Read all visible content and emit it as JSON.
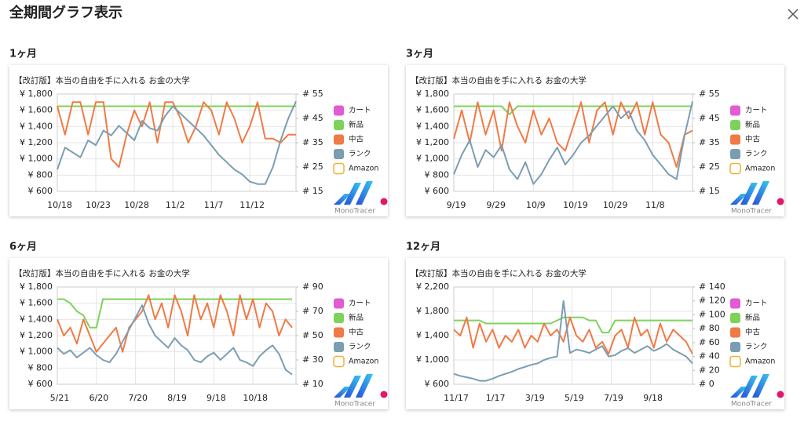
{
  "page_title": "全期間グラフ表示",
  "logo": "MonoTracer",
  "chart_data": [
    {
      "type": "line",
      "section": "1ヶ月",
      "title": "【改訂版】本当の自由を手に入れる お金の大学",
      "grid": true,
      "x": [
        0,
        1,
        2,
        3,
        4,
        5,
        6,
        7,
        8,
        9,
        10,
        11,
        12,
        13,
        14,
        15,
        16,
        17,
        18,
        19,
        20,
        21,
        22,
        23,
        24,
        25,
        26,
        27,
        28,
        29,
        30,
        31
      ],
      "xlim": [
        0,
        31
      ],
      "xticks": [
        {
          "value": 0,
          "label": "10/18"
        },
        {
          "value": 5,
          "label": "10/23"
        },
        {
          "value": 10,
          "label": "10/28"
        },
        {
          "value": 15,
          "label": "11/2"
        },
        {
          "value": 20,
          "label": "11/7"
        },
        {
          "value": 25,
          "label": "11/12"
        }
      ],
      "ylim": [
        600,
        1800
      ],
      "yticks": [
        {
          "value": 600,
          "label": "¥ 600"
        },
        {
          "value": 800,
          "label": "¥ 800"
        },
        {
          "value": 1000,
          "label": "¥ 1,000"
        },
        {
          "value": 1200,
          "label": "¥ 1,200"
        },
        {
          "value": 1400,
          "label": "¥ 1,400"
        },
        {
          "value": 1600,
          "label": "¥ 1,600"
        },
        {
          "value": 1800,
          "label": "¥ 1,800"
        }
      ],
      "y2lim": [
        15,
        55
      ],
      "y2ticks": [
        {
          "value": 15,
          "label": "# 15"
        },
        {
          "value": 25,
          "label": "# 25"
        },
        {
          "value": 35,
          "label": "# 35"
        },
        {
          "value": 45,
          "label": "# 45"
        },
        {
          "value": 55,
          "label": "# 55"
        }
      ],
      "series": [
        {
          "name": "カート",
          "color": "#e25bd3"
        },
        {
          "name": "新品",
          "color": "#7dd35a",
          "values": [
            1650,
            1650,
            1650,
            1650,
            1650,
            1650,
            1650,
            1650,
            1650,
            1650,
            1650,
            1650,
            1650,
            1650,
            1650,
            1650,
            1650,
            1650,
            1650,
            1650,
            1650,
            1650,
            1650,
            1650,
            1650,
            1650,
            1650,
            1650,
            1650,
            1650,
            1650,
            1650
          ]
        },
        {
          "name": "中古",
          "color": "#f07a45",
          "values": [
            1650,
            1300,
            1700,
            1700,
            1300,
            1700,
            1700,
            1000,
            900,
            1300,
            1600,
            1400,
            1700,
            1200,
            1700,
            1700,
            1500,
            1200,
            1400,
            1700,
            1600,
            1300,
            1700,
            1500,
            1200,
            1400,
            1700,
            1250,
            1250,
            1200,
            1300,
            1300
          ]
        },
        {
          "name": "ランク",
          "color": "#7b9db2",
          "axis": "y2",
          "values": [
            24,
            33,
            31,
            29,
            36,
            34,
            40,
            38,
            42,
            39,
            36,
            44,
            41,
            40,
            46,
            50,
            47,
            44,
            41,
            38,
            34,
            30,
            27,
            24,
            22,
            19,
            18,
            18,
            25,
            36,
            45,
            52
          ]
        },
        {
          "name": "Amazon",
          "color": "#f2b035",
          "outline": true
        }
      ]
    },
    {
      "type": "line",
      "section": "3ヶ月",
      "title": "【改訂版】本当の自由を手に入れる お金の大学",
      "grid": true,
      "x": [
        0,
        2,
        4,
        6,
        8,
        10,
        12,
        14,
        16,
        18,
        20,
        22,
        24,
        26,
        28,
        30,
        32,
        34,
        36,
        38,
        40,
        42,
        44,
        46,
        48,
        50,
        52,
        54,
        56,
        58,
        60
      ],
      "xlim": [
        0,
        60
      ],
      "xticks": [
        {
          "value": 0,
          "label": "9/19"
        },
        {
          "value": 10,
          "label": "9/29"
        },
        {
          "value": 20,
          "label": "10/9"
        },
        {
          "value": 30,
          "label": "10/19"
        },
        {
          "value": 40,
          "label": "10/29"
        },
        {
          "value": 50,
          "label": "11/8"
        }
      ],
      "ylim": [
        600,
        1800
      ],
      "yticks": [
        {
          "value": 600,
          "label": "¥ 600"
        },
        {
          "value": 800,
          "label": "¥ 800"
        },
        {
          "value": 1000,
          "label": "¥ 1,000"
        },
        {
          "value": 1200,
          "label": "¥ 1,200"
        },
        {
          "value": 1400,
          "label": "¥ 1,400"
        },
        {
          "value": 1600,
          "label": "¥ 1,600"
        },
        {
          "value": 1800,
          "label": "¥ 1,800"
        }
      ],
      "y2lim": [
        15,
        55
      ],
      "y2ticks": [
        {
          "value": 15,
          "label": "# 15"
        },
        {
          "value": 25,
          "label": "# 25"
        },
        {
          "value": 35,
          "label": "# 35"
        },
        {
          "value": 45,
          "label": "# 45"
        },
        {
          "value": 55,
          "label": "# 55"
        }
      ],
      "series": [
        {
          "name": "カート",
          "color": "#e25bd3"
        },
        {
          "name": "新品",
          "color": "#7dd35a",
          "values": [
            1650,
            1650,
            1650,
            1650,
            1650,
            1650,
            1650,
            1550,
            1650,
            1650,
            1650,
            1650,
            1650,
            1650,
            1650,
            1650,
            1650,
            1650,
            1650,
            1650,
            1650,
            1650,
            1650,
            1650,
            1650,
            1650,
            1650,
            1650,
            1650,
            1650,
            1650
          ]
        },
        {
          "name": "中古",
          "color": "#f07a45",
          "values": [
            1250,
            1600,
            1200,
            1700,
            1300,
            1600,
            1100,
            1700,
            1400,
            1200,
            1600,
            1300,
            1500,
            1200,
            1100,
            1400,
            1700,
            1200,
            1600,
            1700,
            1300,
            1700,
            1500,
            1700,
            1300,
            1700,
            1300,
            1200,
            900,
            1300,
            1350
          ]
        },
        {
          "name": "ランク",
          "color": "#7b9db2",
          "axis": "y2",
          "values": [
            22,
            30,
            36,
            25,
            32,
            29,
            34,
            24,
            20,
            27,
            18,
            22,
            28,
            33,
            26,
            30,
            35,
            38,
            42,
            46,
            50,
            45,
            48,
            40,
            36,
            30,
            26,
            22,
            20,
            38,
            52
          ]
        },
        {
          "name": "Amazon",
          "color": "#f2b035",
          "outline": true
        }
      ]
    },
    {
      "type": "line",
      "section": "6ヶ月",
      "title": "【改訂版】本当の自由を手に入れる お金の大学",
      "grid": true,
      "x": [
        0,
        5,
        10,
        15,
        20,
        25,
        30,
        35,
        40,
        45,
        50,
        55,
        60,
        65,
        70,
        75,
        80,
        85,
        90,
        95,
        100,
        105,
        110,
        115,
        120,
        125,
        130,
        135,
        140,
        145,
        150,
        155,
        160,
        165,
        170,
        175,
        180
      ],
      "xlim": [
        0,
        183
      ],
      "xticks": [
        {
          "value": 0,
          "label": "5/21"
        },
        {
          "value": 30,
          "label": "6/20"
        },
        {
          "value": 60,
          "label": "7/20"
        },
        {
          "value": 90,
          "label": "8/19"
        },
        {
          "value": 120,
          "label": "9/18"
        },
        {
          "value": 150,
          "label": "10/18"
        }
      ],
      "ylim": [
        600,
        1800
      ],
      "yticks": [
        {
          "value": 600,
          "label": "¥ 600"
        },
        {
          "value": 800,
          "label": "¥ 800"
        },
        {
          "value": 1000,
          "label": "¥ 1,000"
        },
        {
          "value": 1200,
          "label": "¥ 1,200"
        },
        {
          "value": 1400,
          "label": "¥ 1,400"
        },
        {
          "value": 1600,
          "label": "¥ 1,600"
        },
        {
          "value": 1800,
          "label": "¥ 1,800"
        }
      ],
      "y2lim": [
        10,
        90
      ],
      "y2ticks": [
        {
          "value": 10,
          "label": "# 10"
        },
        {
          "value": 30,
          "label": "# 30"
        },
        {
          "value": 50,
          "label": "# 50"
        },
        {
          "value": 70,
          "label": "# 70"
        },
        {
          "value": 90,
          "label": "# 90"
        }
      ],
      "series": [
        {
          "name": "カート",
          "color": "#e25bd3"
        },
        {
          "name": "新品",
          "color": "#7dd35a",
          "values": [
            1650,
            1650,
            1600,
            1500,
            1450,
            1300,
            1300,
            1650,
            1650,
            1650,
            1650,
            1650,
            1650,
            1650,
            1650,
            1650,
            1650,
            1650,
            1650,
            1650,
            1650,
            1650,
            1650,
            1650,
            1650,
            1650,
            1650,
            1650,
            1650,
            1650,
            1650,
            1650,
            1650,
            1650,
            1650,
            1650,
            1650
          ]
        },
        {
          "name": "中古",
          "color": "#f07a45",
          "values": [
            1400,
            1200,
            1300,
            1100,
            1400,
            1200,
            1000,
            1100,
            1200,
            1300,
            1000,
            1300,
            1400,
            1500,
            1700,
            1400,
            1600,
            1300,
            1700,
            1500,
            1200,
            1700,
            1400,
            1600,
            1300,
            1700,
            1500,
            1200,
            1700,
            1400,
            1650,
            1300,
            1600,
            1500,
            1200,
            1400,
            1300
          ]
        },
        {
          "name": "ランク",
          "color": "#7b9db2",
          "axis": "y2",
          "values": [
            40,
            35,
            38,
            32,
            36,
            40,
            34,
            30,
            28,
            35,
            45,
            55,
            65,
            75,
            60,
            50,
            45,
            40,
            48,
            42,
            38,
            30,
            28,
            33,
            36,
            30,
            35,
            40,
            30,
            28,
            25,
            33,
            38,
            42,
            35,
            22,
            18
          ]
        },
        {
          "name": "Amazon",
          "color": "#f2b035",
          "outline": true
        }
      ]
    },
    {
      "type": "line",
      "section": "12ヶ月",
      "title": "【改訂版】本当の自由を手に入れる お金の大学",
      "grid": true,
      "x": [
        0,
        10,
        20,
        30,
        40,
        50,
        60,
        70,
        80,
        90,
        100,
        110,
        120,
        130,
        140,
        150,
        160,
        170,
        180,
        190,
        200,
        210,
        220,
        230,
        240,
        250,
        260,
        270,
        280,
        290,
        300,
        310,
        320,
        330,
        340,
        350,
        360,
        370
      ],
      "xlim": [
        0,
        370
      ],
      "xticks": [
        {
          "value": 0,
          "label": "11/17"
        },
        {
          "value": 61,
          "label": "1/17"
        },
        {
          "value": 122,
          "label": "3/19"
        },
        {
          "value": 183,
          "label": "5/19"
        },
        {
          "value": 244,
          "label": "7/19"
        },
        {
          "value": 305,
          "label": "9/18"
        }
      ],
      "ylim": [
        600,
        2200
      ],
      "yticks": [
        {
          "value": 600,
          "label": "¥ 600"
        },
        {
          "value": 1000,
          "label": "¥ 1,000"
        },
        {
          "value": 1400,
          "label": "¥ 1,400"
        },
        {
          "value": 1800,
          "label": "¥ 1,800"
        },
        {
          "value": 2200,
          "label": "¥ 2,200"
        }
      ],
      "y2lim": [
        0,
        140
      ],
      "y2ticks": [
        {
          "value": 0,
          "label": "# 0"
        },
        {
          "value": 20,
          "label": "# 20"
        },
        {
          "value": 40,
          "label": "# 40"
        },
        {
          "value": 60,
          "label": "# 60"
        },
        {
          "value": 80,
          "label": "# 80"
        },
        {
          "value": 100,
          "label": "# 100"
        },
        {
          "value": 120,
          "label": "# 120"
        },
        {
          "value": 140,
          "label": "# 140"
        }
      ],
      "series": [
        {
          "name": "カート",
          "color": "#e25bd3"
        },
        {
          "name": "新品",
          "color": "#7dd35a",
          "values": [
            1650,
            1650,
            1650,
            1650,
            1650,
            1600,
            1600,
            1600,
            1600,
            1600,
            1600,
            1600,
            1600,
            1600,
            1600,
            1600,
            1650,
            1700,
            1700,
            1700,
            1700,
            1650,
            1650,
            1450,
            1450,
            1650,
            1650,
            1650,
            1650,
            1650,
            1650,
            1650,
            1650,
            1650,
            1650,
            1650,
            1650,
            1650
          ]
        },
        {
          "name": "中古",
          "color": "#f07a45",
          "values": [
            1500,
            1400,
            1700,
            1200,
            1600,
            1300,
            1500,
            1200,
            1400,
            1300,
            1500,
            1200,
            1400,
            1300,
            1600,
            1400,
            1500,
            1300,
            1700,
            1400,
            1300,
            1500,
            1200,
            1300,
            1100,
            1400,
            1500,
            1200,
            1700,
            1400,
            1500,
            1200,
            1600,
            1300,
            1500,
            1400,
            1300,
            1100
          ]
        },
        {
          "name": "ランク",
          "color": "#7b9db2",
          "axis": "y2",
          "values": [
            15,
            12,
            10,
            8,
            5,
            5,
            8,
            12,
            15,
            18,
            22,
            25,
            28,
            30,
            35,
            38,
            40,
            120,
            45,
            50,
            48,
            45,
            50,
            55,
            40,
            42,
            48,
            52,
            45,
            50,
            55,
            48,
            52,
            58,
            50,
            45,
            40,
            30
          ]
        },
        {
          "name": "Amazon",
          "color": "#f2b035",
          "outline": true
        }
      ]
    }
  ]
}
